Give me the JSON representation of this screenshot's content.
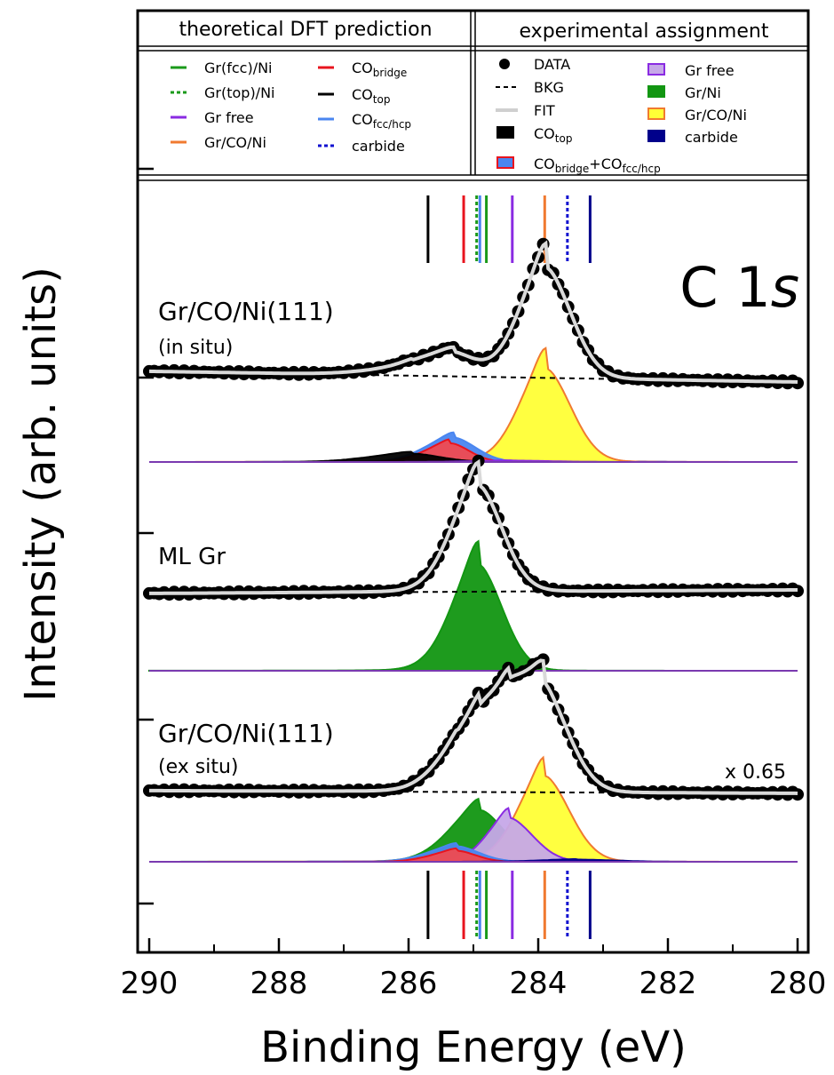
{
  "chart_data": {
    "type": "line",
    "xlabel": "Binding Energy (eV)",
    "ylabel": "Intensity (arb. units)",
    "xlim": [
      290,
      280
    ],
    "x_reversed": true,
    "x_ticks": [
      "290",
      "288",
      "286",
      "284",
      "282",
      "280"
    ],
    "element_label": {
      "main": "C 1",
      "italic": "s"
    },
    "scale_note": "x 0.65",
    "legend": {
      "left_header": "theoretical DFT prediction",
      "right_header": "experimental assignment",
      "dft": [
        {
          "label": "Gr(fcc)/Ni",
          "style": "solid",
          "color": "#1a9a1a"
        },
        {
          "label": "Gr(top)/Ni",
          "style": "dotted",
          "color": "#1a9a1a"
        },
        {
          "label": "Gr free",
          "style": "solid",
          "color": "#8a2be2"
        },
        {
          "label": "Gr/CO/Ni",
          "style": "solid",
          "color": "#f07a30"
        },
        {
          "label": "CO",
          "sub": "bridge",
          "style": "solid",
          "color": "#e8141e"
        },
        {
          "label": "CO",
          "sub": "top",
          "style": "solid",
          "color": "#000000"
        },
        {
          "label": "CO",
          "sub": "fcc/hcp",
          "style": "solid",
          "color": "#4a86f0"
        },
        {
          "label": "carbide",
          "style": "dotted",
          "color": "#1010d0"
        }
      ],
      "exp": [
        {
          "label": "DATA",
          "kind": "dot"
        },
        {
          "label": "BKG",
          "kind": "dash"
        },
        {
          "label": "FIT",
          "kind": "fit"
        },
        {
          "label": "CO",
          "sub": "top",
          "kind": "swatch",
          "fill": "#000000",
          "stroke": "#000000"
        },
        {
          "label": "CO",
          "sub": "bridge",
          "label2": "+CO",
          "sub2": "fcc/hcp",
          "kind": "swatch",
          "fill": "#4a86f0",
          "stroke": "#e8141e"
        },
        {
          "label": "Gr free",
          "kind": "swatch",
          "fill": "#c6a8e8",
          "stroke": "#8a2be2"
        },
        {
          "label": "Gr/Ni",
          "kind": "swatch",
          "fill": "#129612",
          "stroke": "#129612"
        },
        {
          "label": "Gr/CO/Ni",
          "kind": "swatch",
          "fill": "#ffff36",
          "stroke": "#f07a30"
        },
        {
          "label": "carbide",
          "kind": "swatch",
          "fill": "#00008b",
          "stroke": "#00008b"
        }
      ]
    },
    "dft_markers": [
      {
        "name": "CO top",
        "be": 285.7,
        "color": "#000000",
        "dotted": false
      },
      {
        "name": "CO bridge",
        "be": 285.15,
        "color": "#e8141e",
        "dotted": false
      },
      {
        "name": "Gr(top)/Ni",
        "be": 284.95,
        "color": "#1a9a1a",
        "dotted": true
      },
      {
        "name": "CO fcc/hcp",
        "be": 284.9,
        "color": "#4a86f0",
        "dotted": false
      },
      {
        "name": "Gr(fcc)/Ni",
        "be": 284.8,
        "color": "#1a9a1a",
        "dotted": false
      },
      {
        "name": "Gr free",
        "be": 284.4,
        "color": "#8a2be2",
        "dotted": false
      },
      {
        "name": "Gr/CO/Ni",
        "be": 283.9,
        "color": "#f07a30",
        "dotted": false
      },
      {
        "name": "carbide",
        "be": 283.55,
        "color": "#1010d0",
        "dotted": true
      },
      {
        "name": "carbide",
        "be": 283.2,
        "color": "#00008b",
        "dotted": false
      }
    ],
    "panels": [
      {
        "label": "Gr/CO/Ni(111)",
        "sublabel": "(in situ)",
        "fit_peaks": [
          {
            "center": 283.88,
            "height": 1.0,
            "width_left": 0.42,
            "width_right": 0.4
          },
          {
            "center": 285.3,
            "height": 0.19,
            "width_left": 0.45,
            "width_right": 0.35
          },
          {
            "center": 285.95,
            "height": 0.07,
            "width_left": 0.65,
            "width_right": 0.45
          }
        ],
        "components": [
          {
            "name": "carbide",
            "center": 283.2,
            "height": 0.01,
            "width_left": 0.6,
            "width_right": 0.6,
            "fill": "#00008b",
            "stroke": "#00008b"
          },
          {
            "name": "Gr/CO/Ni",
            "center": 283.88,
            "height": 1.0,
            "width_left": 0.42,
            "width_right": 0.4,
            "fill": "#ffff36",
            "stroke": "#f07a30"
          },
          {
            "name": "CO bridge + CO fcc/hcp",
            "center": 285.3,
            "height": 0.26,
            "width_left": 0.45,
            "width_right": 0.35,
            "fill": "#4a86f0",
            "stroke": "#4a86f0"
          },
          {
            "name": "CO bridge",
            "center": 285.35,
            "height": 0.2,
            "width_left": 0.4,
            "width_right": 0.3,
            "fill": "#f04a50",
            "stroke": "#e8141e"
          },
          {
            "name": "CO top",
            "center": 285.95,
            "height": 0.09,
            "width_left": 0.65,
            "width_right": 0.45,
            "fill": "#000000",
            "stroke": "#000000"
          },
          {
            "name": "Gr free",
            "center": 284.4,
            "height": 0.015,
            "width_left": 0.6,
            "width_right": 0.6,
            "fill": "#c6a8e8",
            "stroke": "#8a2be2"
          }
        ]
      },
      {
        "label": "ML Gr",
        "sublabel": "",
        "fit_peaks": [
          {
            "center": 284.92,
            "height": 1.0,
            "width_left": 0.42,
            "width_right": 0.38
          }
        ],
        "components": [
          {
            "name": "Gr/Ni",
            "center": 284.92,
            "height": 1.0,
            "width_left": 0.42,
            "width_right": 0.38,
            "fill": "#129612",
            "stroke": "#129612"
          }
        ]
      },
      {
        "label": "Gr/CO/Ni(111)",
        "sublabel": "(ex situ)",
        "fit_peaks": [
          {
            "center": 283.9,
            "height": 0.78,
            "width_left": 0.42,
            "width_right": 0.4
          },
          {
            "center": 284.9,
            "height": 0.47,
            "width_left": 0.48,
            "width_right": 0.4
          },
          {
            "center": 284.45,
            "height": 0.4,
            "width_left": 0.35,
            "width_right": 0.38
          },
          {
            "center": 285.25,
            "height": 0.1,
            "width_left": 0.4,
            "width_right": 0.3
          }
        ],
        "components": [
          {
            "name": "Gr/Ni",
            "center": 284.9,
            "height": 0.47,
            "width_left": 0.48,
            "width_right": 0.4,
            "fill": "#129612",
            "stroke": "#129612"
          },
          {
            "name": "Gr/CO/Ni",
            "center": 283.9,
            "height": 0.78,
            "width_left": 0.42,
            "width_right": 0.4,
            "fill": "#ffff36",
            "stroke": "#f07a30"
          },
          {
            "name": "Gr free",
            "center": 284.45,
            "height": 0.4,
            "width_left": 0.35,
            "width_right": 0.38,
            "fill": "#c6a8e8",
            "stroke": "#8a2be2"
          },
          {
            "name": "CO bridge + CO fcc/hcp",
            "center": 285.25,
            "height": 0.14,
            "width_left": 0.45,
            "width_right": 0.35,
            "fill": "#4a86f0",
            "stroke": "#4a86f0"
          },
          {
            "name": "CO bridge",
            "center": 285.25,
            "height": 0.1,
            "width_left": 0.4,
            "width_right": 0.3,
            "fill": "#f04a50",
            "stroke": "#e8141e"
          },
          {
            "name": "carbide",
            "center": 283.4,
            "height": 0.02,
            "width_left": 0.6,
            "width_right": 0.6,
            "fill": "#00008b",
            "stroke": "#00008b"
          }
        ]
      }
    ]
  }
}
